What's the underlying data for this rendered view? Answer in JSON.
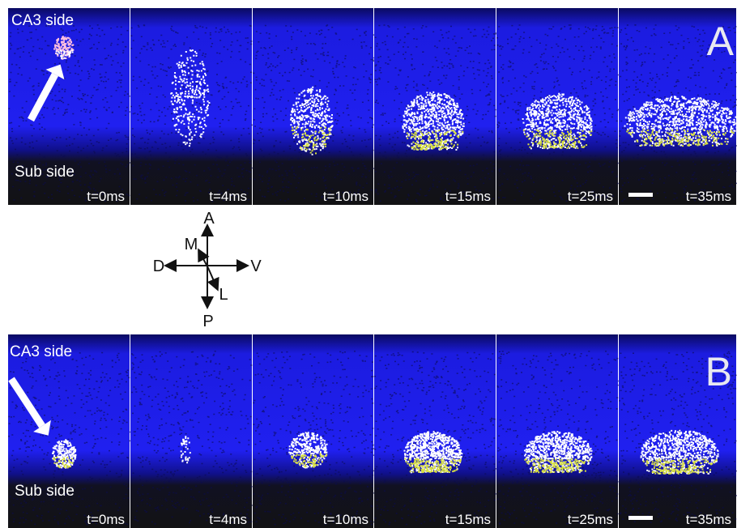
{
  "panel_a": {
    "label": "A",
    "top_label": "CA3 side",
    "bottom_label": "Sub side",
    "times": [
      "t=0ms",
      "t=4ms",
      "t=10ms",
      "t=15ms",
      "t=25ms",
      "t=35ms"
    ]
  },
  "panel_b": {
    "label": "B",
    "top_label": "CA3 side",
    "bottom_label": "Sub side",
    "times": [
      "t=0ms",
      "t=4ms",
      "t=10ms",
      "t=15ms",
      "t=25ms",
      "t=35ms"
    ]
  },
  "compass": {
    "up": "A",
    "down": "P",
    "left": "D",
    "right": "V",
    "medial": "M",
    "lateral": "L"
  }
}
